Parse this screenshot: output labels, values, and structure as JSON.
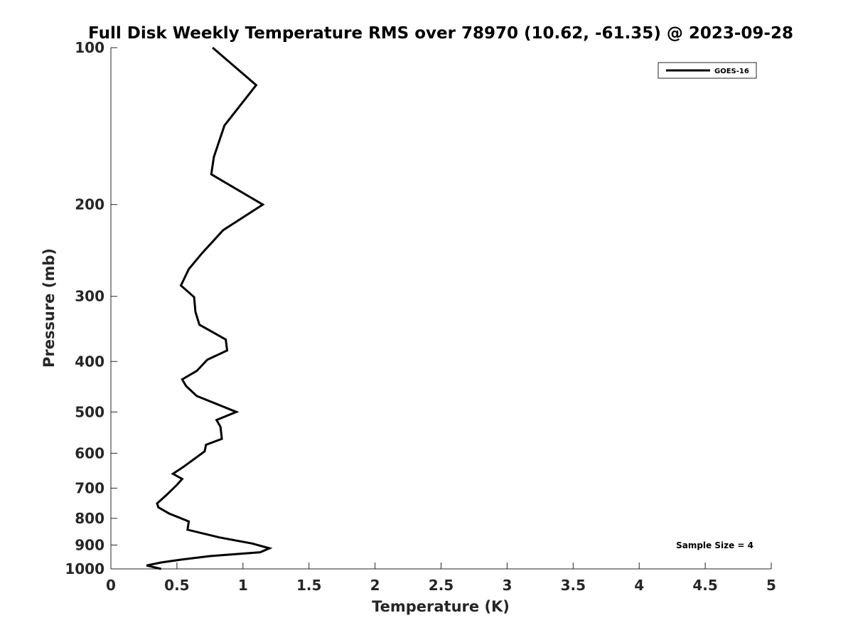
{
  "chart_data": {
    "type": "line",
    "title": "Full Disk Weekly Temperature RMS over 78970 (10.62, -61.35) @ 2023-09-28",
    "xlabel": "Temperature (K)",
    "ylabel": "Pressure (mb)",
    "xlim": [
      0,
      5
    ],
    "ylim": [
      1000,
      100
    ],
    "yscale": "log",
    "x_ticks": [
      0,
      0.5,
      1,
      1.5,
      2,
      2.5,
      3,
      3.5,
      4,
      4.5,
      5
    ],
    "x_tick_labels": [
      "0",
      "0.5",
      "1",
      "1.5",
      "2",
      "2.5",
      "3",
      "3.5",
      "4",
      "4.5",
      "5"
    ],
    "y_ticks": [
      100,
      200,
      300,
      400,
      500,
      600,
      700,
      800,
      900,
      1000
    ],
    "y_tick_labels": [
      "100",
      "200",
      "300",
      "400",
      "500",
      "600",
      "700",
      "800",
      "900",
      "1000"
    ],
    "grid": false,
    "legend_position": "top-right",
    "annotation": "Sample Size = 4",
    "series": [
      {
        "name": "GOES-16",
        "color": "#000000",
        "points": [
          [
            0.77,
            100
          ],
          [
            1.1,
            118
          ],
          [
            0.86,
            141
          ],
          [
            0.78,
            162
          ],
          [
            0.76,
            175
          ],
          [
            1.15,
            200
          ],
          [
            0.85,
            224
          ],
          [
            0.69,
            248
          ],
          [
            0.59,
            266
          ],
          [
            0.53,
            286
          ],
          [
            0.63,
            301
          ],
          [
            0.64,
            321
          ],
          [
            0.67,
            340
          ],
          [
            0.87,
            363
          ],
          [
            0.88,
            381
          ],
          [
            0.73,
            397
          ],
          [
            0.65,
            417
          ],
          [
            0.54,
            433
          ],
          [
            0.57,
            446
          ],
          [
            0.65,
            466
          ],
          [
            0.95,
            500
          ],
          [
            0.8,
            518
          ],
          [
            0.83,
            534
          ],
          [
            0.84,
            563
          ],
          [
            0.72,
            578
          ],
          [
            0.71,
            595
          ],
          [
            0.55,
            637
          ],
          [
            0.47,
            657
          ],
          [
            0.54,
            672
          ],
          [
            0.5,
            690
          ],
          [
            0.42,
            722
          ],
          [
            0.35,
            749
          ],
          [
            0.36,
            762
          ],
          [
            0.44,
            783
          ],
          [
            0.59,
            811
          ],
          [
            0.58,
            841
          ],
          [
            0.82,
            870
          ],
          [
            1.07,
            894
          ],
          [
            1.2,
            913
          ],
          [
            1.13,
            929
          ],
          [
            0.75,
            945
          ],
          [
            0.53,
            960
          ],
          [
            0.38,
            972
          ],
          [
            0.27,
            985
          ],
          [
            0.38,
            1000
          ]
        ]
      }
    ]
  }
}
